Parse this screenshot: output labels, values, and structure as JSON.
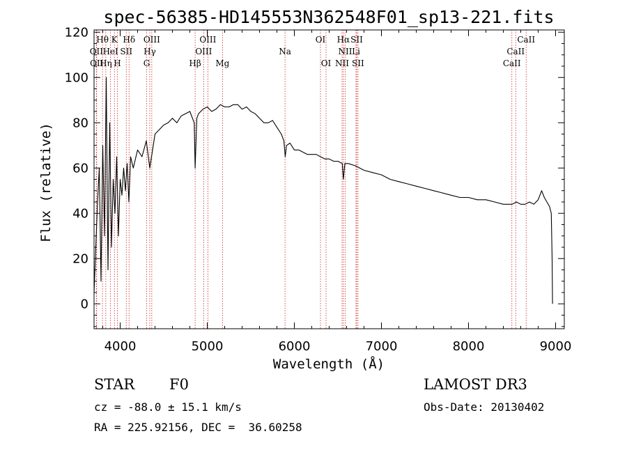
{
  "chart_data": {
    "type": "line",
    "title": "spec-56385-HD145553N362548F01_sp13-221.fits",
    "xlabel": "Wavelength (Å)",
    "ylabel": "Flux (relative)",
    "xlim": [
      3700,
      9100
    ],
    "ylim": [
      -11,
      121
    ],
    "x_ticks": [
      4000,
      5000,
      6000,
      7000,
      8000,
      9000
    ],
    "y_ticks": [
      0,
      20,
      40,
      60,
      80,
      100,
      120
    ],
    "series": [
      {
        "name": "spectrum",
        "x": [
          3700,
          3720,
          3740,
          3760,
          3780,
          3800,
          3820,
          3840,
          3860,
          3880,
          3900,
          3920,
          3940,
          3960,
          3980,
          4000,
          4020,
          4040,
          4060,
          4080,
          4100,
          4120,
          4150,
          4200,
          4250,
          4300,
          4340,
          4400,
          4450,
          4500,
          4550,
          4600,
          4650,
          4700,
          4750,
          4800,
          4850,
          4861,
          4880,
          4900,
          4950,
          5000,
          5050,
          5100,
          5150,
          5200,
          5250,
          5300,
          5350,
          5400,
          5450,
          5500,
          5550,
          5600,
          5650,
          5700,
          5750,
          5800,
          5850,
          5880,
          5895,
          5910,
          5950,
          6000,
          6050,
          6100,
          6150,
          6200,
          6250,
          6300,
          6350,
          6400,
          6450,
          6500,
          6550,
          6563,
          6580,
          6620,
          6700,
          6800,
          6900,
          7000,
          7100,
          7200,
          7300,
          7400,
          7500,
          7600,
          7700,
          7800,
          7900,
          8000,
          8100,
          8200,
          8300,
          8400,
          8500,
          8550,
          8600,
          8650,
          8700,
          8750,
          8800,
          8840,
          8870,
          8900,
          8930,
          8950,
          8960,
          8965
        ],
        "y": [
          5,
          25,
          45,
          60,
          10,
          70,
          30,
          100,
          15,
          80,
          25,
          55,
          40,
          65,
          30,
          55,
          48,
          60,
          50,
          62,
          45,
          65,
          60,
          68,
          65,
          72,
          60,
          75,
          77,
          79,
          80,
          82,
          80,
          83,
          84,
          85,
          80,
          60,
          82,
          84,
          86,
          87,
          85,
          86,
          88,
          87,
          87,
          88,
          88,
          86,
          87,
          85,
          84,
          82,
          80,
          80,
          81,
          78,
          75,
          72,
          65,
          70,
          71,
          68,
          68,
          67,
          66,
          66,
          66,
          65,
          64,
          64,
          63,
          63,
          62,
          55,
          62,
          62,
          61,
          59,
          58,
          57,
          55,
          54,
          53,
          52,
          51,
          50,
          49,
          48,
          47,
          47,
          46,
          46,
          45,
          44,
          44,
          45,
          44,
          44,
          45,
          44,
          46,
          50,
          47,
          45,
          43,
          40,
          20,
          0
        ]
      }
    ],
    "annotations": [
      {
        "label": "Hθ",
        "x": 3797,
        "row": 1
      },
      {
        "label": "K",
        "x": 3934,
        "row": 1
      },
      {
        "label": "Hδ",
        "x": 4102,
        "row": 1
      },
      {
        "label": "OIII",
        "x": 4363,
        "row": 1
      },
      {
        "label": "OIII",
        "x": 5007,
        "row": 1
      },
      {
        "label": "OI",
        "x": 6300,
        "row": 1
      },
      {
        "label": "Hα",
        "x": 6563,
        "row": 1
      },
      {
        "label": "SII",
        "x": 6716,
        "row": 1
      },
      {
        "label": "CaII",
        "x": 8662,
        "row": 1
      },
      {
        "label": "OII",
        "x": 3727,
        "row": 2
      },
      {
        "label": "HeI",
        "x": 3889,
        "row": 2
      },
      {
        "label": "SII",
        "x": 4070,
        "row": 2
      },
      {
        "label": "Hγ",
        "x": 4340,
        "row": 2
      },
      {
        "label": "OIII",
        "x": 4959,
        "row": 2
      },
      {
        "label": "Na",
        "x": 5893,
        "row": 2
      },
      {
        "label": "NII",
        "x": 6584,
        "row": 2
      },
      {
        "label": "Li",
        "x": 6708,
        "row": 2
      },
      {
        "label": "CaII",
        "x": 8542,
        "row": 2
      },
      {
        "label": "OII",
        "x": 3730,
        "row": 3
      },
      {
        "label": "Hη",
        "x": 3835,
        "row": 3
      },
      {
        "label": "H",
        "x": 3968,
        "row": 3
      },
      {
        "label": "G",
        "x": 4304,
        "row": 3
      },
      {
        "label": "Hβ",
        "x": 4861,
        "row": 3
      },
      {
        "label": "Mg",
        "x": 5175,
        "row": 3
      },
      {
        "label": "OI",
        "x": 6364,
        "row": 3
      },
      {
        "label": "NII",
        "x": 6548,
        "row": 3
      },
      {
        "label": "SII",
        "x": 6731,
        "row": 3
      },
      {
        "label": "CaII",
        "x": 8498,
        "row": 3
      }
    ],
    "marker_lines": [
      3727,
      3730,
      3797,
      3835,
      3889,
      3934,
      3968,
      4070,
      4102,
      4304,
      4340,
      4363,
      4861,
      4959,
      5007,
      5175,
      5893,
      6300,
      6364,
      6548,
      6563,
      6584,
      6708,
      6716,
      6731,
      8498,
      8542,
      8662
    ]
  },
  "colors": {
    "spectrum": "#000000",
    "marker": "#cc2222",
    "axes": "#000000"
  },
  "info": {
    "object_type": "STAR",
    "subclass": "F0",
    "survey": "LAMOST DR3",
    "cz": "cz = -88.0 ± 15.1 km/s",
    "obs_date": "Obs-Date: 20130402",
    "coords": "RA = 225.92156, DEC =  36.60258"
  }
}
